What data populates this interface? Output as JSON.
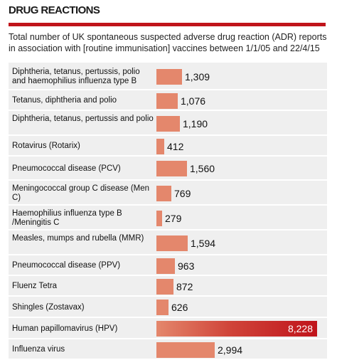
{
  "title": "DRUG REACTIONS",
  "subtitle": "Total number of UK spontaneous suspected adverse drug reaction (ADR) reports in association with [routine immunisation] vaccines between 1/1/05 and 22/4/15",
  "colors": {
    "accent_red": "#c0141b",
    "bar_light": "#e4876c",
    "bar_dark": "#c0141b",
    "row_bg": "#efefef"
  },
  "chart_data": {
    "type": "bar",
    "orientation": "horizontal",
    "title": "DRUG REACTIONS",
    "subtitle": "Total number of UK spontaneous suspected adverse drug reaction (ADR) reports in association with [routine immunisation] vaccines between 1/1/05 and 22/4/15",
    "categories": [
      "Diphtheria, tetanus, pertussis, polio and haemophilius influenza type B",
      "Tetanus, diphtheria and polio",
      "Diphtheria, tetanus, pertussis and polio",
      "Rotavirus (Rotarix)",
      "Pneumococcal disease (PCV)",
      "Meningococcal group C disease (Men C)",
      "Haemophilius influenza type B /Meningitis C",
      "Measles, mumps and rubella (MMR)",
      "Pneumococcal disease (PPV)",
      "Fluenz Tetra",
      "Shingles (Zostavax)",
      "Human papillomavirus (HPV)",
      "Influenza virus"
    ],
    "values": [
      1309,
      1076,
      1190,
      412,
      1560,
      769,
      279,
      1594,
      963,
      872,
      626,
      8228,
      2994
    ],
    "value_labels": [
      "1,309",
      "1,076",
      "1,190",
      "412",
      "1,560",
      "769",
      "279",
      "1,594",
      "963",
      "872",
      "626",
      "8,228",
      "2,994"
    ],
    "xlim": [
      0,
      8228
    ],
    "grid": false,
    "legend": "none"
  }
}
